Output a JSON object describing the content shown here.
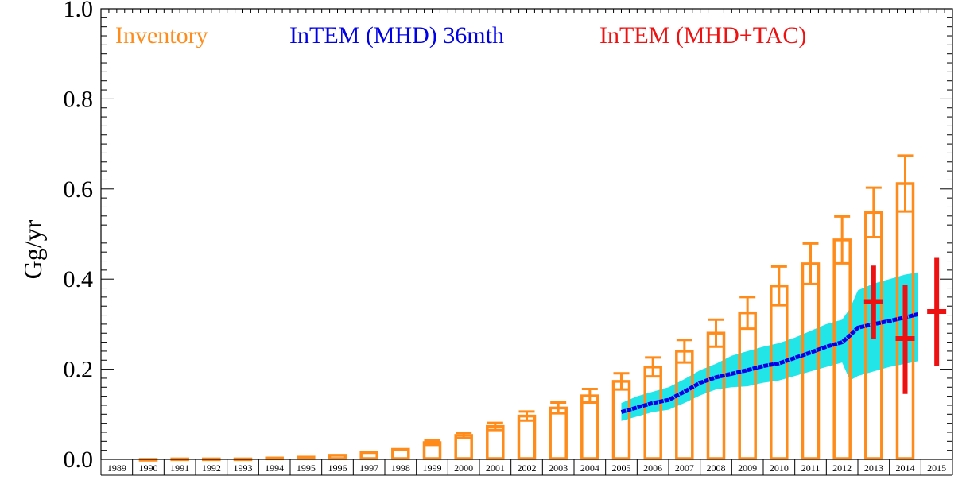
{
  "chart_data": {
    "type": "bar",
    "ylabel": "Gg/yr",
    "ylim": [
      0.0,
      1.0
    ],
    "yticks": [
      "0.0",
      "0.2",
      "0.4",
      "0.6",
      "0.8",
      "1.0"
    ],
    "ytick_values": [
      0.0,
      0.2,
      0.4,
      0.6,
      0.8,
      1.0
    ],
    "years": [
      "1989",
      "1990",
      "1991",
      "1992",
      "1993",
      "1994",
      "1995",
      "1996",
      "1997",
      "1998",
      "1999",
      "2000",
      "2001",
      "2002",
      "2003",
      "2004",
      "2005",
      "2006",
      "2007",
      "2008",
      "2009",
      "2010",
      "2011",
      "2012",
      "2013",
      "2014",
      "2015"
    ],
    "colors": {
      "inventory": "#ff8c1a",
      "intem_mhd_line": "#0000e6",
      "intem_mhd_band": "#22e5e8",
      "intem_mhd_tac": "#ee1111"
    },
    "legend": {
      "placement": "top",
      "inventory": "Inventory",
      "intem_mhd": "InTEM (MHD) 36mth",
      "intem_mhd_tac": "InTEM (MHD+TAC)"
    },
    "inventory": {
      "name": "Inventory",
      "years": [
        1990,
        1991,
        1992,
        1993,
        1994,
        1995,
        1996,
        1997,
        1998,
        1999,
        2000,
        2001,
        2002,
        2003,
        2004,
        2005,
        2006,
        2007,
        2008,
        2009,
        2010,
        2011,
        2012,
        2013,
        2014
      ],
      "values": [
        0.0,
        0.001,
        0.001,
        0.001,
        0.003,
        0.005,
        0.009,
        0.015,
        0.022,
        0.037,
        0.053,
        0.073,
        0.096,
        0.114,
        0.141,
        0.173,
        0.205,
        0.24,
        0.28,
        0.325,
        0.385,
        0.434,
        0.487,
        0.548,
        0.612
      ],
      "errors": [
        0.0,
        0.001,
        0.001,
        0.001,
        0.002,
        0.002,
        0.003,
        0.003,
        0.004,
        0.005,
        0.006,
        0.008,
        0.01,
        0.012,
        0.015,
        0.018,
        0.021,
        0.025,
        0.03,
        0.035,
        0.043,
        0.045,
        0.052,
        0.055,
        0.062
      ]
    },
    "intem_mhd": {
      "name": "InTEM (MHD) 36mth",
      "x": [
        2005.0,
        2005.5,
        2006.0,
        2006.5,
        2007.0,
        2007.5,
        2008.0,
        2008.5,
        2009.0,
        2009.5,
        2010.0,
        2010.5,
        2011.0,
        2011.5,
        2012.0,
        2012.25,
        2012.5,
        2013.0,
        2013.5,
        2014.0,
        2014.4
      ],
      "y": [
        0.105,
        0.115,
        0.125,
        0.132,
        0.15,
        0.17,
        0.182,
        0.19,
        0.198,
        0.207,
        0.213,
        0.225,
        0.237,
        0.25,
        0.26,
        0.275,
        0.292,
        0.3,
        0.307,
        0.315,
        0.322
      ],
      "lower": [
        0.085,
        0.095,
        0.105,
        0.11,
        0.125,
        0.142,
        0.155,
        0.16,
        0.162,
        0.17,
        0.175,
        0.185,
        0.195,
        0.205,
        0.215,
        0.175,
        0.185,
        0.195,
        0.205,
        0.212,
        0.218
      ],
      "upper": [
        0.125,
        0.14,
        0.15,
        0.16,
        0.178,
        0.198,
        0.212,
        0.23,
        0.24,
        0.25,
        0.258,
        0.27,
        0.285,
        0.3,
        0.31,
        0.335,
        0.375,
        0.39,
        0.4,
        0.41,
        0.415
      ]
    },
    "intem_mhd_tac": {
      "name": "InTEM (MHD+TAC)",
      "x": [
        2013.0,
        2014.0,
        2015.0
      ],
      "values": [
        0.35,
        0.268,
        0.328
      ],
      "lower": [
        0.268,
        0.145,
        0.208
      ],
      "upper": [
        0.43,
        0.388,
        0.447
      ]
    },
    "grid": false
  }
}
